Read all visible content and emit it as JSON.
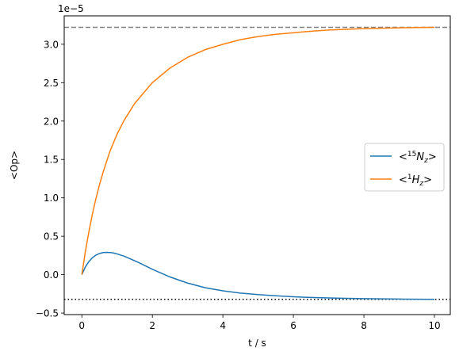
{
  "chart_data": {
    "type": "line",
    "title": "",
    "xlabel": "t / s",
    "ylabel": "<Op>",
    "offset_label": "1e−5",
    "xlim": [
      -0.5,
      10.45
    ],
    "ylim": [
      -0.52,
      3.37
    ],
    "xticks": [
      0,
      2,
      4,
      6,
      8,
      10
    ],
    "yticks": [
      -0.5,
      0.0,
      0.5,
      1.0,
      1.5,
      2.0,
      2.5,
      3.0
    ],
    "xtick_labels": [
      "0",
      "2",
      "4",
      "6",
      "8",
      "10"
    ],
    "ytick_labels": [
      "−0.5",
      "0.0",
      "0.5",
      "1.0",
      "1.5",
      "2.0",
      "2.5",
      "3.0"
    ],
    "grid": false,
    "legend_position": "center-right",
    "series": [
      {
        "name": "<15Nz>",
        "legend_parts": [
          "<",
          "15",
          "N",
          "z",
          ">"
        ],
        "color": "#1f77b4",
        "x": [
          0,
          0.1,
          0.2,
          0.3,
          0.4,
          0.5,
          0.6,
          0.7,
          0.8,
          0.9,
          1.0,
          1.2,
          1.4,
          1.6,
          1.8,
          2.0,
          2.5,
          3.0,
          3.5,
          4.0,
          4.5,
          5.0,
          5.5,
          6.0,
          6.5,
          7.0,
          7.5,
          8.0,
          8.5,
          9.0,
          9.5,
          10.0
        ],
        "values": [
          0.0,
          0.1,
          0.17,
          0.22,
          0.255,
          0.275,
          0.287,
          0.29,
          0.288,
          0.282,
          0.27,
          0.24,
          0.2,
          0.16,
          0.115,
          0.07,
          -0.03,
          -0.11,
          -0.17,
          -0.21,
          -0.24,
          -0.26,
          -0.275,
          -0.288,
          -0.297,
          -0.303,
          -0.308,
          -0.312,
          -0.315,
          -0.318,
          -0.32,
          -0.322
        ]
      },
      {
        "name": "<1Hz>",
        "legend_parts": [
          "<",
          "1",
          "H",
          "z",
          ">"
        ],
        "color": "#ff7f0e",
        "x": [
          0,
          0.1,
          0.2,
          0.3,
          0.4,
          0.5,
          0.6,
          0.8,
          1.0,
          1.2,
          1.5,
          2.0,
          2.5,
          3.0,
          3.5,
          4.0,
          4.5,
          5.0,
          5.5,
          6.0,
          6.5,
          7.0,
          7.5,
          8.0,
          8.5,
          9.0,
          9.5,
          10.0
        ],
        "values": [
          0.0,
          0.3,
          0.56,
          0.79,
          0.99,
          1.17,
          1.33,
          1.61,
          1.83,
          2.01,
          2.23,
          2.5,
          2.69,
          2.83,
          2.93,
          3.0,
          3.06,
          3.1,
          3.13,
          3.15,
          3.17,
          3.185,
          3.195,
          3.203,
          3.209,
          3.214,
          3.218,
          3.22
        ]
      }
    ],
    "reference_lines": [
      {
        "y": 3.22,
        "style": "dashed",
        "color": "#808080"
      },
      {
        "y": -0.322,
        "style": "dotted",
        "color": "#000000"
      }
    ]
  }
}
